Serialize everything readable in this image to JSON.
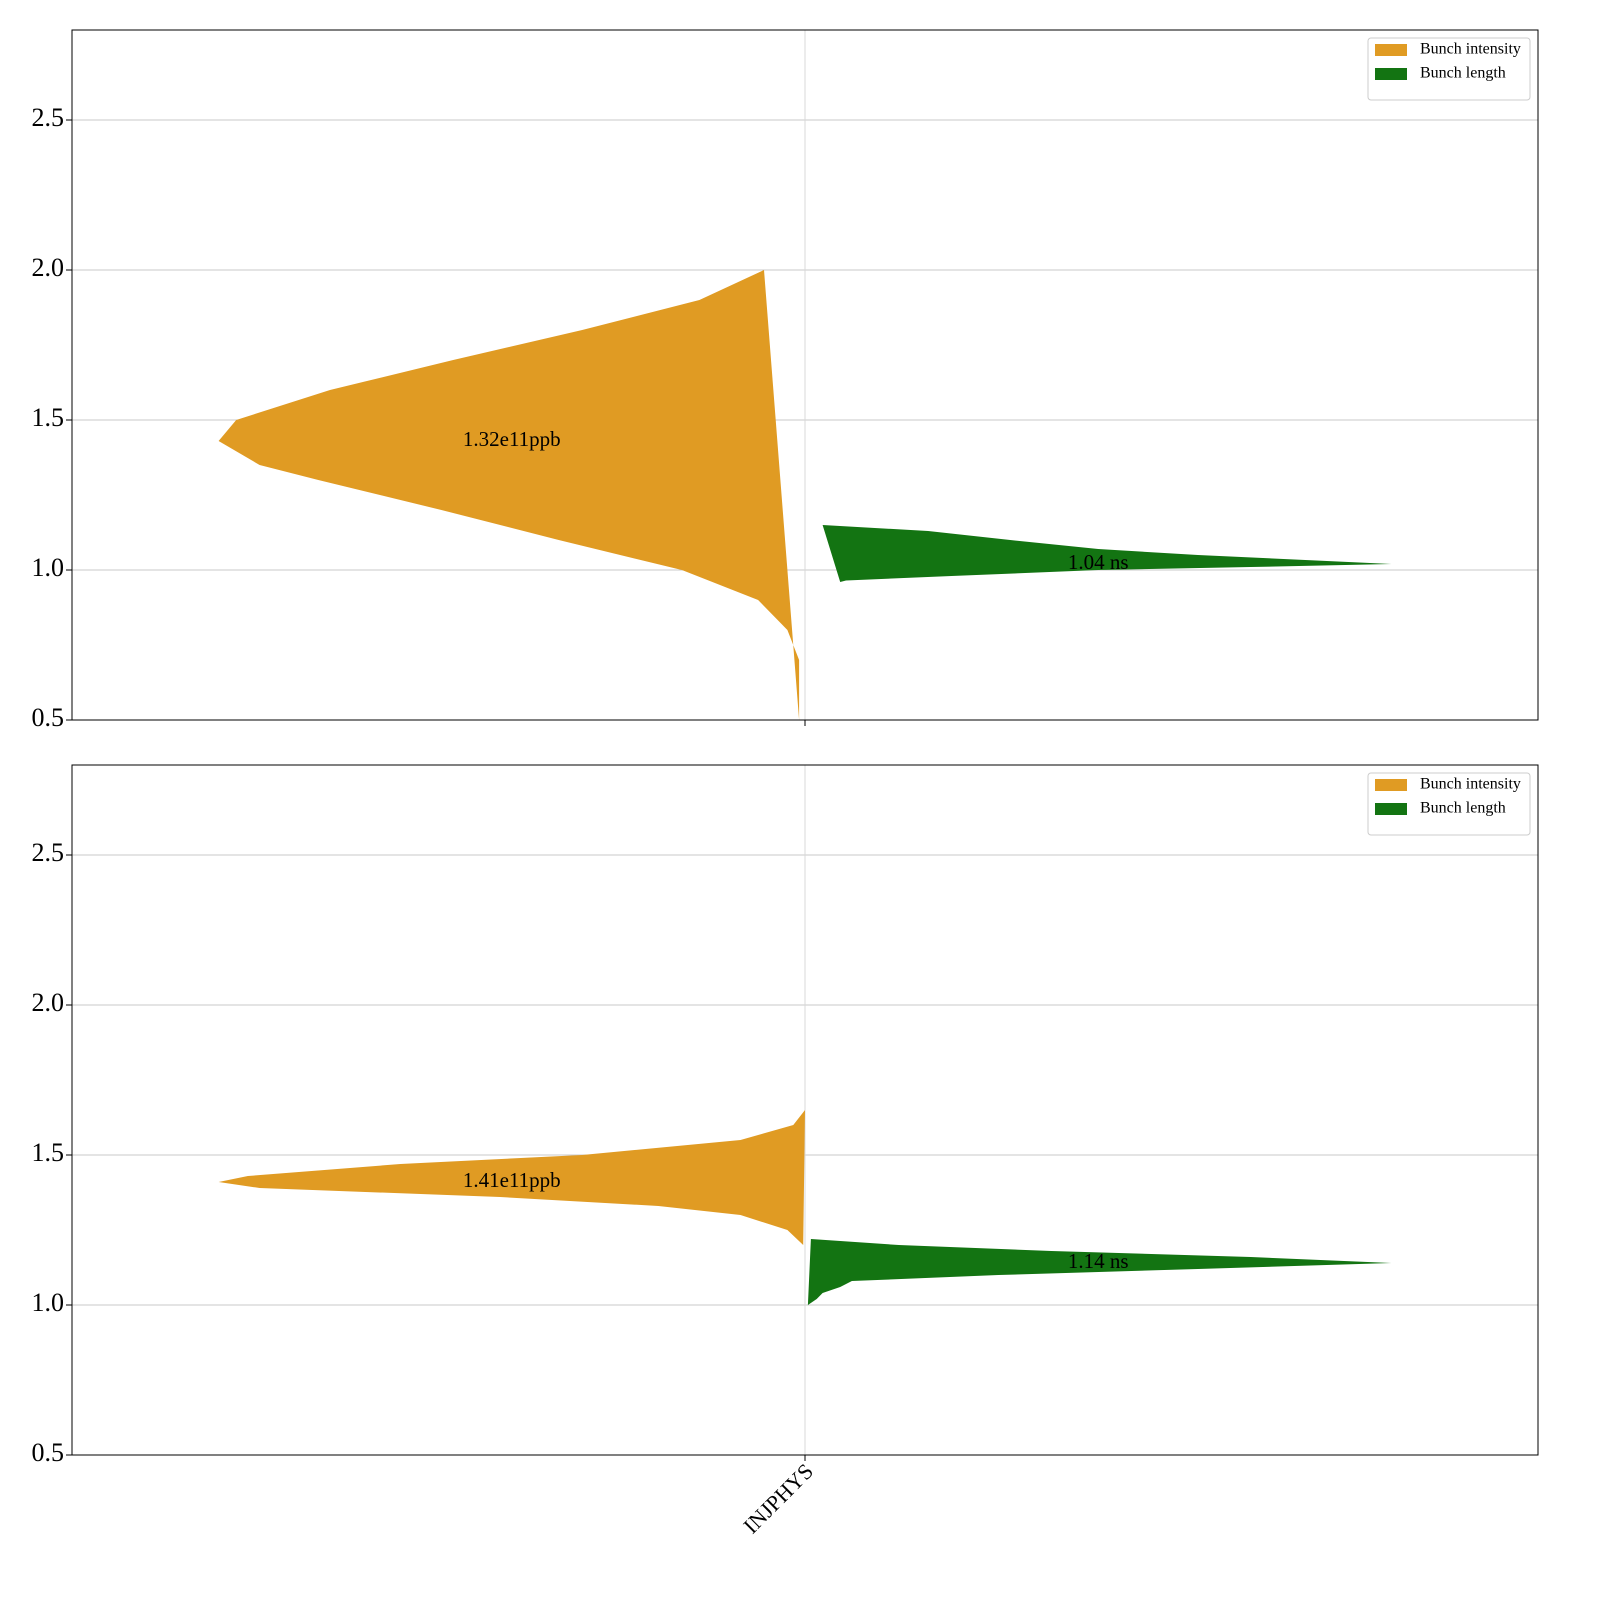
{
  "chart_data": [
    {
      "type": "violin",
      "categories": [
        null
      ],
      "ylim": [
        0.5,
        2.8
      ],
      "yticks": [
        0.5,
        {
          "value": 1,
          "label": "1.0"
        },
        1.5,
        {
          "value": 2,
          "label": "2.0"
        },
        2.5
      ],
      "grid": true,
      "legend": "upper right",
      "series": [
        {
          "name": "Bunch intensity",
          "color": "#e09b23",
          "side": "left",
          "annotation": "1.32e11ppb",
          "y": [
            2.0,
            1.9,
            1.8,
            1.7,
            1.6,
            1.5,
            1.43,
            1.35,
            1.3,
            1.2,
            1.1,
            1.0,
            0.9,
            0.8,
            0.7,
            0.6,
            0.5
          ],
          "density": [
            0.07,
            0.18,
            0.38,
            0.6,
            0.81,
            0.97,
            1,
            0.93,
            0.83,
            0.62,
            0.42,
            0.21,
            0.08,
            0.03,
            0.01,
            0.01,
            0.01
          ]
        },
        {
          "name": "Bunch length",
          "color": "#137412",
          "side": "right",
          "annotation": "1.04 ns",
          "y": [
            1.15,
            1.13,
            1.1,
            1.07,
            1.05,
            1.03,
            1.02,
            1.01,
            1.0,
            0.98,
            0.965,
            0.96
          ],
          "density": [
            0.03,
            0.21,
            0.35,
            0.5,
            0.67,
            0.89,
            1,
            0.76,
            0.5,
            0.25,
            0.07,
            0.06
          ]
        }
      ]
    },
    {
      "type": "violin",
      "categories": [
        "INJPHYS"
      ],
      "ylim": [
        0.5,
        2.8
      ],
      "yticks": [
        0.5,
        {
          "value": 1,
          "label": "1.0"
        },
        1.5,
        {
          "value": 2,
          "label": "2.0"
        },
        2.5
      ],
      "grid": true,
      "legend": "upper right",
      "series": [
        {
          "name": "Bunch intensity",
          "color": "#e09b23",
          "side": "left",
          "annotation": "1.41e11ppb",
          "y": [
            1.65,
            1.6,
            1.55,
            1.5,
            1.47,
            1.43,
            1.41,
            1.39,
            1.36,
            1.33,
            1.3,
            1.25,
            1.2
          ],
          "density": [
            0,
            0.02,
            0.11,
            0.38,
            0.69,
            0.95,
            1,
            0.93,
            0.52,
            0.25,
            0.11,
            0.03,
            0.003
          ]
        },
        {
          "name": "Bunch length",
          "color": "#137412",
          "side": "right",
          "annotation": "1.14 ns",
          "y": [
            1.22,
            1.2,
            1.18,
            1.16,
            1.14,
            1.12,
            1.1,
            1.08,
            1.06,
            1.04,
            1.02,
            1.0
          ],
          "density": [
            0.01,
            0.16,
            0.42,
            0.76,
            1,
            0.67,
            0.33,
            0.08,
            0.06,
            0.03,
            0.02,
            0.005
          ]
        }
      ]
    }
  ]
}
